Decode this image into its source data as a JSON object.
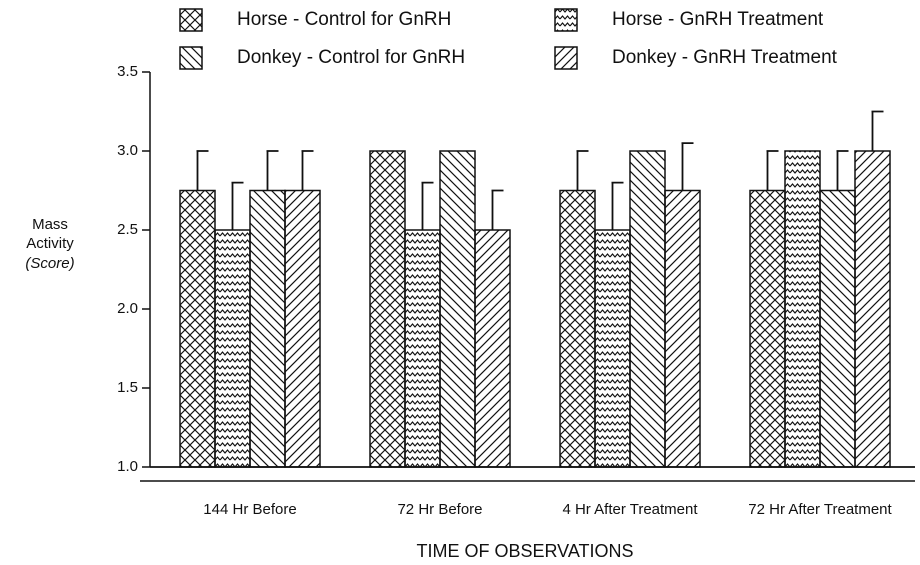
{
  "chart_data": {
    "type": "bar",
    "categories": [
      "144 Hr Before",
      "72 Hr Before",
      "4 Hr After Treatment",
      "72 Hr After Treatment"
    ],
    "series": [
      {
        "name": "Horse - Control for GnRH",
        "color": "#111111",
        "pattern": "crosshatch",
        "values": [
          2.75,
          3.0,
          2.75,
          2.75
        ],
        "errors": [
          0.25,
          null,
          0.25,
          0.25
        ]
      },
      {
        "name": "Horse - GnRH Treatment",
        "color": "#111111",
        "pattern": "zigzag",
        "values": [
          2.5,
          2.5,
          2.5,
          3.0
        ],
        "errors": [
          0.3,
          0.3,
          0.3,
          null
        ]
      },
      {
        "name": "Donkey - Control for GnRH",
        "color": "#111111",
        "pattern": "backslash",
        "values": [
          2.75,
          3.0,
          3.0,
          2.75
        ],
        "errors": [
          0.25,
          null,
          null,
          0.25
        ]
      },
      {
        "name": "Donkey - GnRH Treatment",
        "color": "#111111",
        "pattern": "slash",
        "values": [
          2.75,
          2.5,
          2.75,
          3.0
        ],
        "errors": [
          0.25,
          0.25,
          0.3,
          0.25
        ]
      }
    ],
    "ylabel": [
      "Mass",
      "Activity"
    ],
    "ylabel_unit": "(Score)",
    "xlabel": "TIME OF OBSERVATIONS",
    "ylim": [
      1.0,
      3.5
    ],
    "yticks": [
      {
        "value": 1,
        "label": "1.0"
      },
      1.5,
      {
        "value": 2,
        "label": "2.0"
      },
      2.5,
      {
        "value": 3,
        "label": "3.0"
      },
      3.5
    ],
    "legend": "top"
  }
}
